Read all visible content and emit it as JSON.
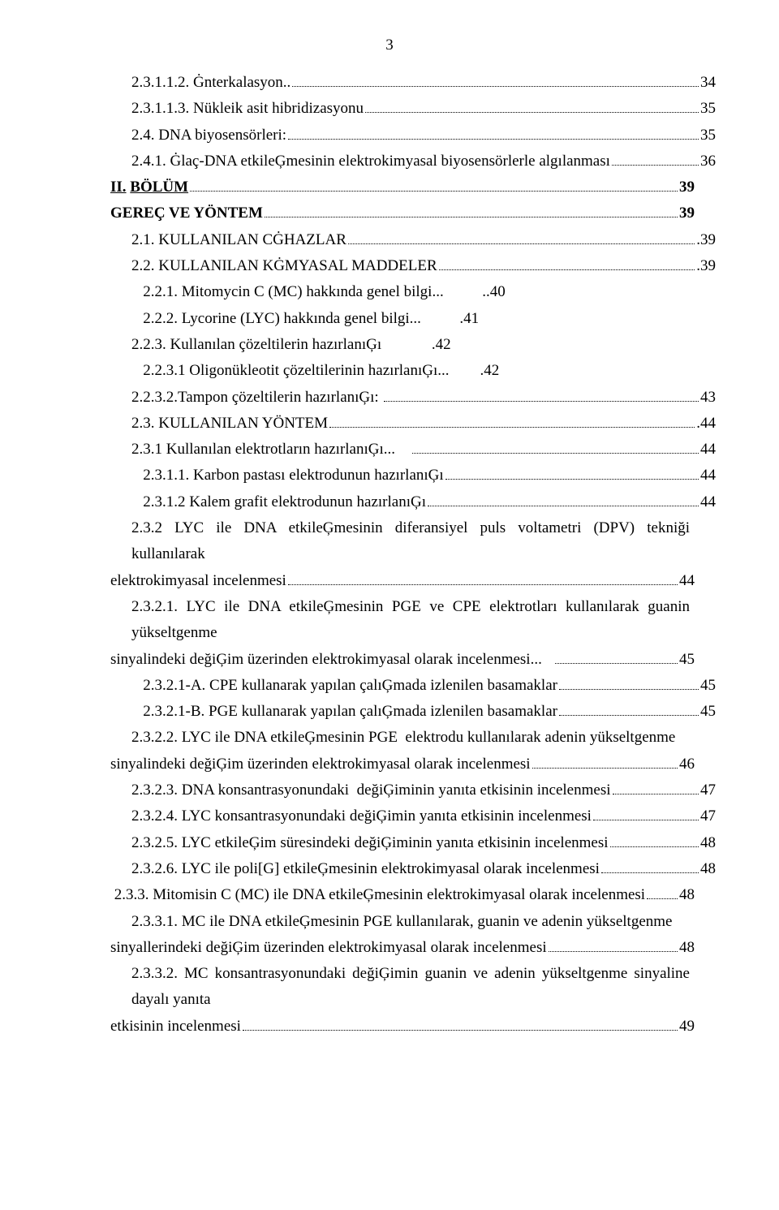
{
  "page_number": "3",
  "lines": [
    {
      "type": "dotline",
      "indent": "indent-1",
      "text": "2.3.1.1.2. Ġnterkalasyon..",
      "page": "34"
    },
    {
      "type": "dotline",
      "indent": "indent-1",
      "text": "2.3.1.1.3. Nükleik asit hibridizasyonu",
      "page": "35"
    },
    {
      "type": "dotline",
      "indent": "indent-1",
      "text": "2.4. DNA biyosensörleri:",
      "page": " 35"
    },
    {
      "type": "dotline",
      "indent": "indent-1",
      "text": "2.4.1. Ġlaç-DNA etkileĢmesinin elektrokimyasal biyosensörlerle algılanması",
      "page": "36"
    },
    {
      "type": "dotline",
      "indent": "indent-0",
      "bold": true,
      "html": "<span class='und'>II.</span> <span class='und'>BÖLÜM</span>",
      "page": " 39"
    },
    {
      "type": "dotline",
      "indent": "indent-0",
      "bold": true,
      "text": "GEREÇ VE YÖNTEM",
      "page": " 39"
    },
    {
      "type": "dotline",
      "indent": "indent-1",
      "text": "2.1. KULLANILAN CĠHAZLAR",
      "page": ".39"
    },
    {
      "type": "dotline",
      "indent": "indent-1",
      "text": "2.2. KULLANILAN KĠMYASAL MADDELER",
      "page": " .39"
    },
    {
      "type": "pre",
      "indent": "indent-1",
      "text": "   2.2.1. Mitomycin C (MC) hakkında genel bilgi...          ..40"
    },
    {
      "type": "pre",
      "indent": "indent-1",
      "text": "   2.2.2. Lycorine (LYC) hakkında genel bilgi...          .41"
    },
    {
      "type": "pre",
      "indent": "indent-1",
      "text": "2.2.3. Kullanılan çözeltilerin hazırlanıĢı             .42"
    },
    {
      "type": "pre",
      "indent": "indent-1",
      "text": "   2.2.3.1 Oligonükleotit çözeltilerinin hazırlanıĢı...        .42"
    },
    {
      "type": "dotline",
      "indent": "indent-1",
      "text": "2.2.3.2.Tampon çözeltilerin hazırlanıĢı: ",
      "page": "  43"
    },
    {
      "type": "dotline",
      "indent": "indent-1",
      "text": "2.3. KULLANILAN YÖNTEM",
      "page": " .44"
    },
    {
      "type": "dotline",
      "indent": "indent-1",
      "text": "2.3.1 Kullanılan elektrotların hazırlanıĢı...    ",
      "page": "44"
    },
    {
      "type": "dotline",
      "indent": "indent-1",
      "text": "   2.3.1.1. Karbon pastası elektrodunun hazırlanıĢı",
      "page": "44"
    },
    {
      "type": "dotline",
      "indent": "indent-1",
      "text": "   2.3.1.2 Kalem grafit elektrodunun hazırlanıĢı",
      "page": "44"
    },
    {
      "type": "flow-dotline",
      "indent": "indent-1",
      "pre": "2.3.2   LYC  ile  DNA  etkileĢmesinin  diferansiyel  puls  voltametri  (DPV)  tekniği  kullanılarak",
      "lead": "elektrokimyasal incelenmesi",
      "lead_indent": "indent-0",
      "page": "44"
    },
    {
      "type": "flow-dotline",
      "indent": "indent-1",
      "pre": "2.3.2.1. LYC ile DNA etkileĢmesinin PGE ve CPE elektrotları kullanılarak guanin yükseltgenme",
      "lead": "sinyalindeki değiĢim üzerinden elektrokimyasal olarak incelenmesi...   ",
      "lead_indent": "indent-0",
      "page": "45"
    },
    {
      "type": "dotline",
      "indent": "indent-1",
      "text": "   2.3.2.1-A. CPE kullanarak yapılan çalıĢmada izlenilen basamaklar",
      "page": "45"
    },
    {
      "type": "dotline",
      "indent": "indent-1",
      "text": "   2.3.2.1-B. PGE kullanarak yapılan çalıĢmada izlenilen basamaklar",
      "page": "45"
    },
    {
      "type": "plain",
      "indent": "indent-1",
      "text": "2.3.2.2. LYC ile DNA etkileĢmesinin PGE  elektrodu kullanılarak adenin yükseltgenme"
    },
    {
      "type": "dotline",
      "indent": "indent-0",
      "text": "sinyalindeki değiĢim üzerinden elektrokimyasal olarak incelenmesi",
      "page": "46"
    },
    {
      "type": "dotline",
      "indent": "indent-1",
      "text": "2.3.2.3. DNA konsantrasyonundaki  değiĢiminin yanıta etkisinin incelenmesi",
      "page": "47"
    },
    {
      "type": "dotline",
      "indent": "indent-1",
      "text": "2.3.2.4. LYC konsantrasyonundaki değiĢimin yanıta etkisinin incelenmesi",
      "page": "47"
    },
    {
      "type": "dotline",
      "indent": "indent-1",
      "text": "2.3.2.5. LYC etkileĢim süresindeki değiĢiminin yanıta etkisinin incelenmesi",
      "page": "48"
    },
    {
      "type": "dotline",
      "indent": "indent-1",
      "text": "2.3.2.6. LYC ile poli[G] etkileĢmesinin elektrokimyasal olarak incelenmesi",
      "page": "48"
    },
    {
      "type": "dotline",
      "indent": "indent-0",
      "text": " 2.3.3. Mitomisin C (MC) ile DNA etkileĢmesinin elektrokimyasal olarak incelenmesi",
      "page": "48"
    },
    {
      "type": "flow-dotline",
      "indent": "indent-1",
      "pre": "2.3.3.1.  MC  ile  DNA  etkileĢmesinin  PGE  kullanılarak,  guanin  ve  adenin  yükseltgenme",
      "lead": "sinyallerindeki değiĢim üzerinden elektrokimyasal olarak incelenmesi",
      "lead_indent": "indent-0",
      "page": "48"
    },
    {
      "type": "flow-dotline",
      "indent": "indent-1",
      "pre": "2.3.3.2. MC konsantrasyonundaki  değiĢimin guanin ve adenin yükseltgenme sinyaline dayalı yanıta",
      "lead": "etkisinin incelenmesi",
      "lead_indent": "indent-0",
      "page": " 49"
    }
  ]
}
